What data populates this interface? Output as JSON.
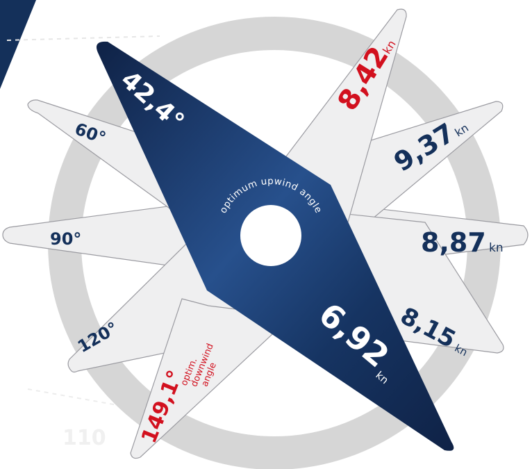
{
  "colors": {
    "navy": "#14305a",
    "navy_dark": "#0f2246",
    "navy_light": "#27508c",
    "accent_red": "#d2101e",
    "petal_fill": "#efeff0",
    "petal_stroke": "#9a9aa0",
    "ring": "#d6d6d6"
  },
  "angles": {
    "a60": "60°",
    "a90": "90°",
    "a120": "120°",
    "upwind": "42,4°",
    "downwind": "149,1°"
  },
  "speeds": {
    "s60": "9,37",
    "s90": "8,87",
    "s120": "8,15",
    "upwind": "6,92",
    "downwind": "8,42"
  },
  "unit": "kn",
  "labels": {
    "center_arc": "optimum upwind angle",
    "downwind_line1": "optim.",
    "downwind_line2": "downwind",
    "downwind_line3": "angle"
  },
  "background": {
    "faint_number": "110"
  }
}
